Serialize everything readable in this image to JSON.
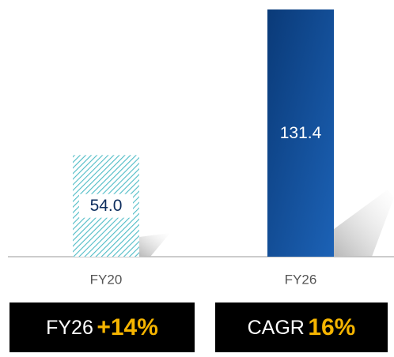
{
  "chart_data": {
    "type": "bar",
    "categories": [
      "FY20",
      "FY26"
    ],
    "values": [
      54.0,
      131.4
    ],
    "value_labels": [
      "54.0",
      "131.4"
    ],
    "colors": [
      "#4fbcc6",
      "#0d4a94"
    ],
    "annotations": [
      {
        "label": "FY26",
        "value": "+14%"
      },
      {
        "label": "CAGR",
        "value": "16%"
      }
    ]
  }
}
